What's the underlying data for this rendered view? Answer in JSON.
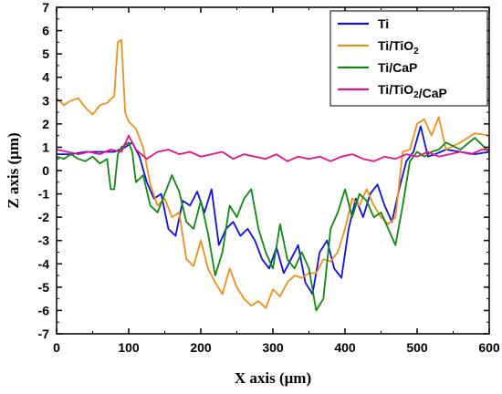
{
  "chart_data": {
    "type": "line",
    "xlabel": "X axis (μm)",
    "ylabel": "Z axis (μm)",
    "xlim": [
      0,
      600
    ],
    "ylim": [
      -7,
      7
    ],
    "x_ticks": [
      "0",
      "100",
      "200",
      "300",
      "400",
      "500",
      "600"
    ],
    "y_ticks": [
      "7",
      "6",
      "5",
      "4",
      "3",
      "2",
      "1",
      "0",
      "-1",
      "-2",
      "-3",
      "-4",
      "-5",
      "-6",
      "-7"
    ],
    "grid": false,
    "legend_position": "top-right",
    "series": [
      {
        "name": "Ti",
        "color": "#1010e0",
        "x": [
          0,
          20,
          40,
          60,
          80,
          95,
          105,
          115,
          125,
          135,
          145,
          155,
          165,
          175,
          185,
          195,
          205,
          215,
          225,
          235,
          245,
          255,
          265,
          275,
          285,
          295,
          305,
          315,
          325,
          335,
          345,
          355,
          365,
          375,
          385,
          395,
          405,
          415,
          425,
          435,
          445,
          455,
          465,
          475,
          485,
          495,
          505,
          515,
          525,
          540,
          560,
          580,
          600
        ],
        "y": [
          0.7,
          0.7,
          0.8,
          0.8,
          0.8,
          1.0,
          1.2,
          0.6,
          -0.5,
          -1.2,
          -1.0,
          -2.5,
          -2.8,
          -1.3,
          -1.5,
          -0.9,
          -1.8,
          -0.8,
          -3.2,
          -2.5,
          -2.2,
          -2.8,
          -2.5,
          -3.0,
          -3.8,
          -4.2,
          -3.3,
          -4.4,
          -3.8,
          -3.2,
          -4.8,
          -5.3,
          -3.5,
          -3.0,
          -4.2,
          -4.6,
          -2.5,
          -1.2,
          -2.0,
          -1.0,
          -0.6,
          -1.5,
          -2.2,
          -0.8,
          0.4,
          0.8,
          1.9,
          0.6,
          0.7,
          0.9,
          0.8,
          0.7,
          0.8
        ]
      },
      {
        "name": "Ti/TiO2",
        "color": "#f0901c",
        "x": [
          0,
          10,
          20,
          30,
          40,
          50,
          60,
          70,
          80,
          85,
          90,
          95,
          100,
          110,
          120,
          130,
          140,
          150,
          160,
          170,
          180,
          190,
          200,
          210,
          220,
          230,
          240,
          250,
          260,
          270,
          280,
          290,
          300,
          310,
          320,
          330,
          340,
          350,
          360,
          370,
          380,
          390,
          400,
          410,
          420,
          430,
          440,
          450,
          460,
          470,
          480,
          490,
          500,
          510,
          520,
          530,
          540,
          560,
          580,
          600
        ],
        "y": [
          3.1,
          2.8,
          3.0,
          3.1,
          2.7,
          2.4,
          2.8,
          2.9,
          3.2,
          5.5,
          5.6,
          2.5,
          2.1,
          1.8,
          1.0,
          -0.6,
          -1.5,
          -1.2,
          -2.0,
          -1.8,
          -3.8,
          -4.1,
          -3.0,
          -4.2,
          -4.8,
          -5.3,
          -4.2,
          -5.0,
          -5.5,
          -5.8,
          -5.6,
          -5.9,
          -5.1,
          -5.4,
          -4.8,
          -4.5,
          -4.6,
          -4.4,
          -4.4,
          -3.8,
          -3.9,
          -3.5,
          -2.5,
          -1.2,
          -1.5,
          -0.8,
          -1.5,
          -2.0,
          -2.3,
          -2.0,
          0.8,
          0.9,
          2.0,
          2.2,
          1.5,
          2.3,
          0.9,
          1.2,
          1.6,
          1.5
        ]
      },
      {
        "name": "Ti/CaP",
        "color": "#118811",
        "x": [
          0,
          10,
          20,
          30,
          40,
          50,
          60,
          70,
          75,
          80,
          85,
          90,
          100,
          105,
          110,
          120,
          130,
          140,
          150,
          160,
          170,
          180,
          190,
          200,
          210,
          220,
          230,
          240,
          250,
          260,
          270,
          280,
          290,
          300,
          310,
          320,
          330,
          340,
          350,
          360,
          370,
          380,
          390,
          400,
          410,
          420,
          430,
          440,
          450,
          460,
          470,
          480,
          490,
          500,
          510,
          520,
          530,
          540,
          560,
          580,
          600
        ],
        "y": [
          0.6,
          0.5,
          0.7,
          0.5,
          0.4,
          0.6,
          0.3,
          0.5,
          -0.8,
          -0.8,
          0.7,
          1.0,
          1.2,
          0.8,
          -0.5,
          -0.2,
          -1.5,
          -1.8,
          -1.0,
          -0.2,
          -0.9,
          -2.2,
          -2.5,
          -1.3,
          -2.7,
          -4.5,
          -3.5,
          -1.5,
          -2.0,
          -1.2,
          -0.8,
          -2.5,
          -3.5,
          -4.2,
          -2.3,
          -3.8,
          -4.2,
          -3.5,
          -4.2,
          -6.0,
          -5.5,
          -2.5,
          -1.8,
          -0.8,
          -2.0,
          -1.0,
          -1.3,
          -2.0,
          -1.8,
          -2.5,
          -3.2,
          -1.5,
          0.4,
          0.8,
          0.6,
          0.8,
          0.9,
          1.2,
          0.9,
          1.4,
          0.8
        ]
      },
      {
        "name": "Ti/TiO2/CaP",
        "color": "#e6108a",
        "x": [
          0,
          15,
          30,
          45,
          60,
          75,
          90,
          100,
          110,
          125,
          140,
          155,
          170,
          185,
          200,
          215,
          230,
          245,
          260,
          275,
          290,
          305,
          320,
          335,
          350,
          365,
          380,
          395,
          410,
          425,
          440,
          455,
          470,
          485,
          500,
          515,
          530,
          545,
          560,
          575,
          590,
          600
        ],
        "y": [
          0.9,
          0.8,
          0.7,
          0.8,
          0.7,
          0.9,
          0.8,
          1.5,
          0.9,
          0.5,
          0.8,
          0.9,
          0.7,
          0.8,
          0.6,
          0.7,
          0.8,
          0.5,
          0.7,
          0.6,
          0.5,
          0.7,
          0.4,
          0.6,
          0.5,
          0.6,
          0.4,
          0.6,
          0.7,
          0.5,
          0.4,
          0.6,
          0.5,
          0.7,
          0.6,
          0.8,
          0.6,
          0.7,
          0.8,
          0.7,
          0.9,
          0.9
        ]
      }
    ]
  }
}
